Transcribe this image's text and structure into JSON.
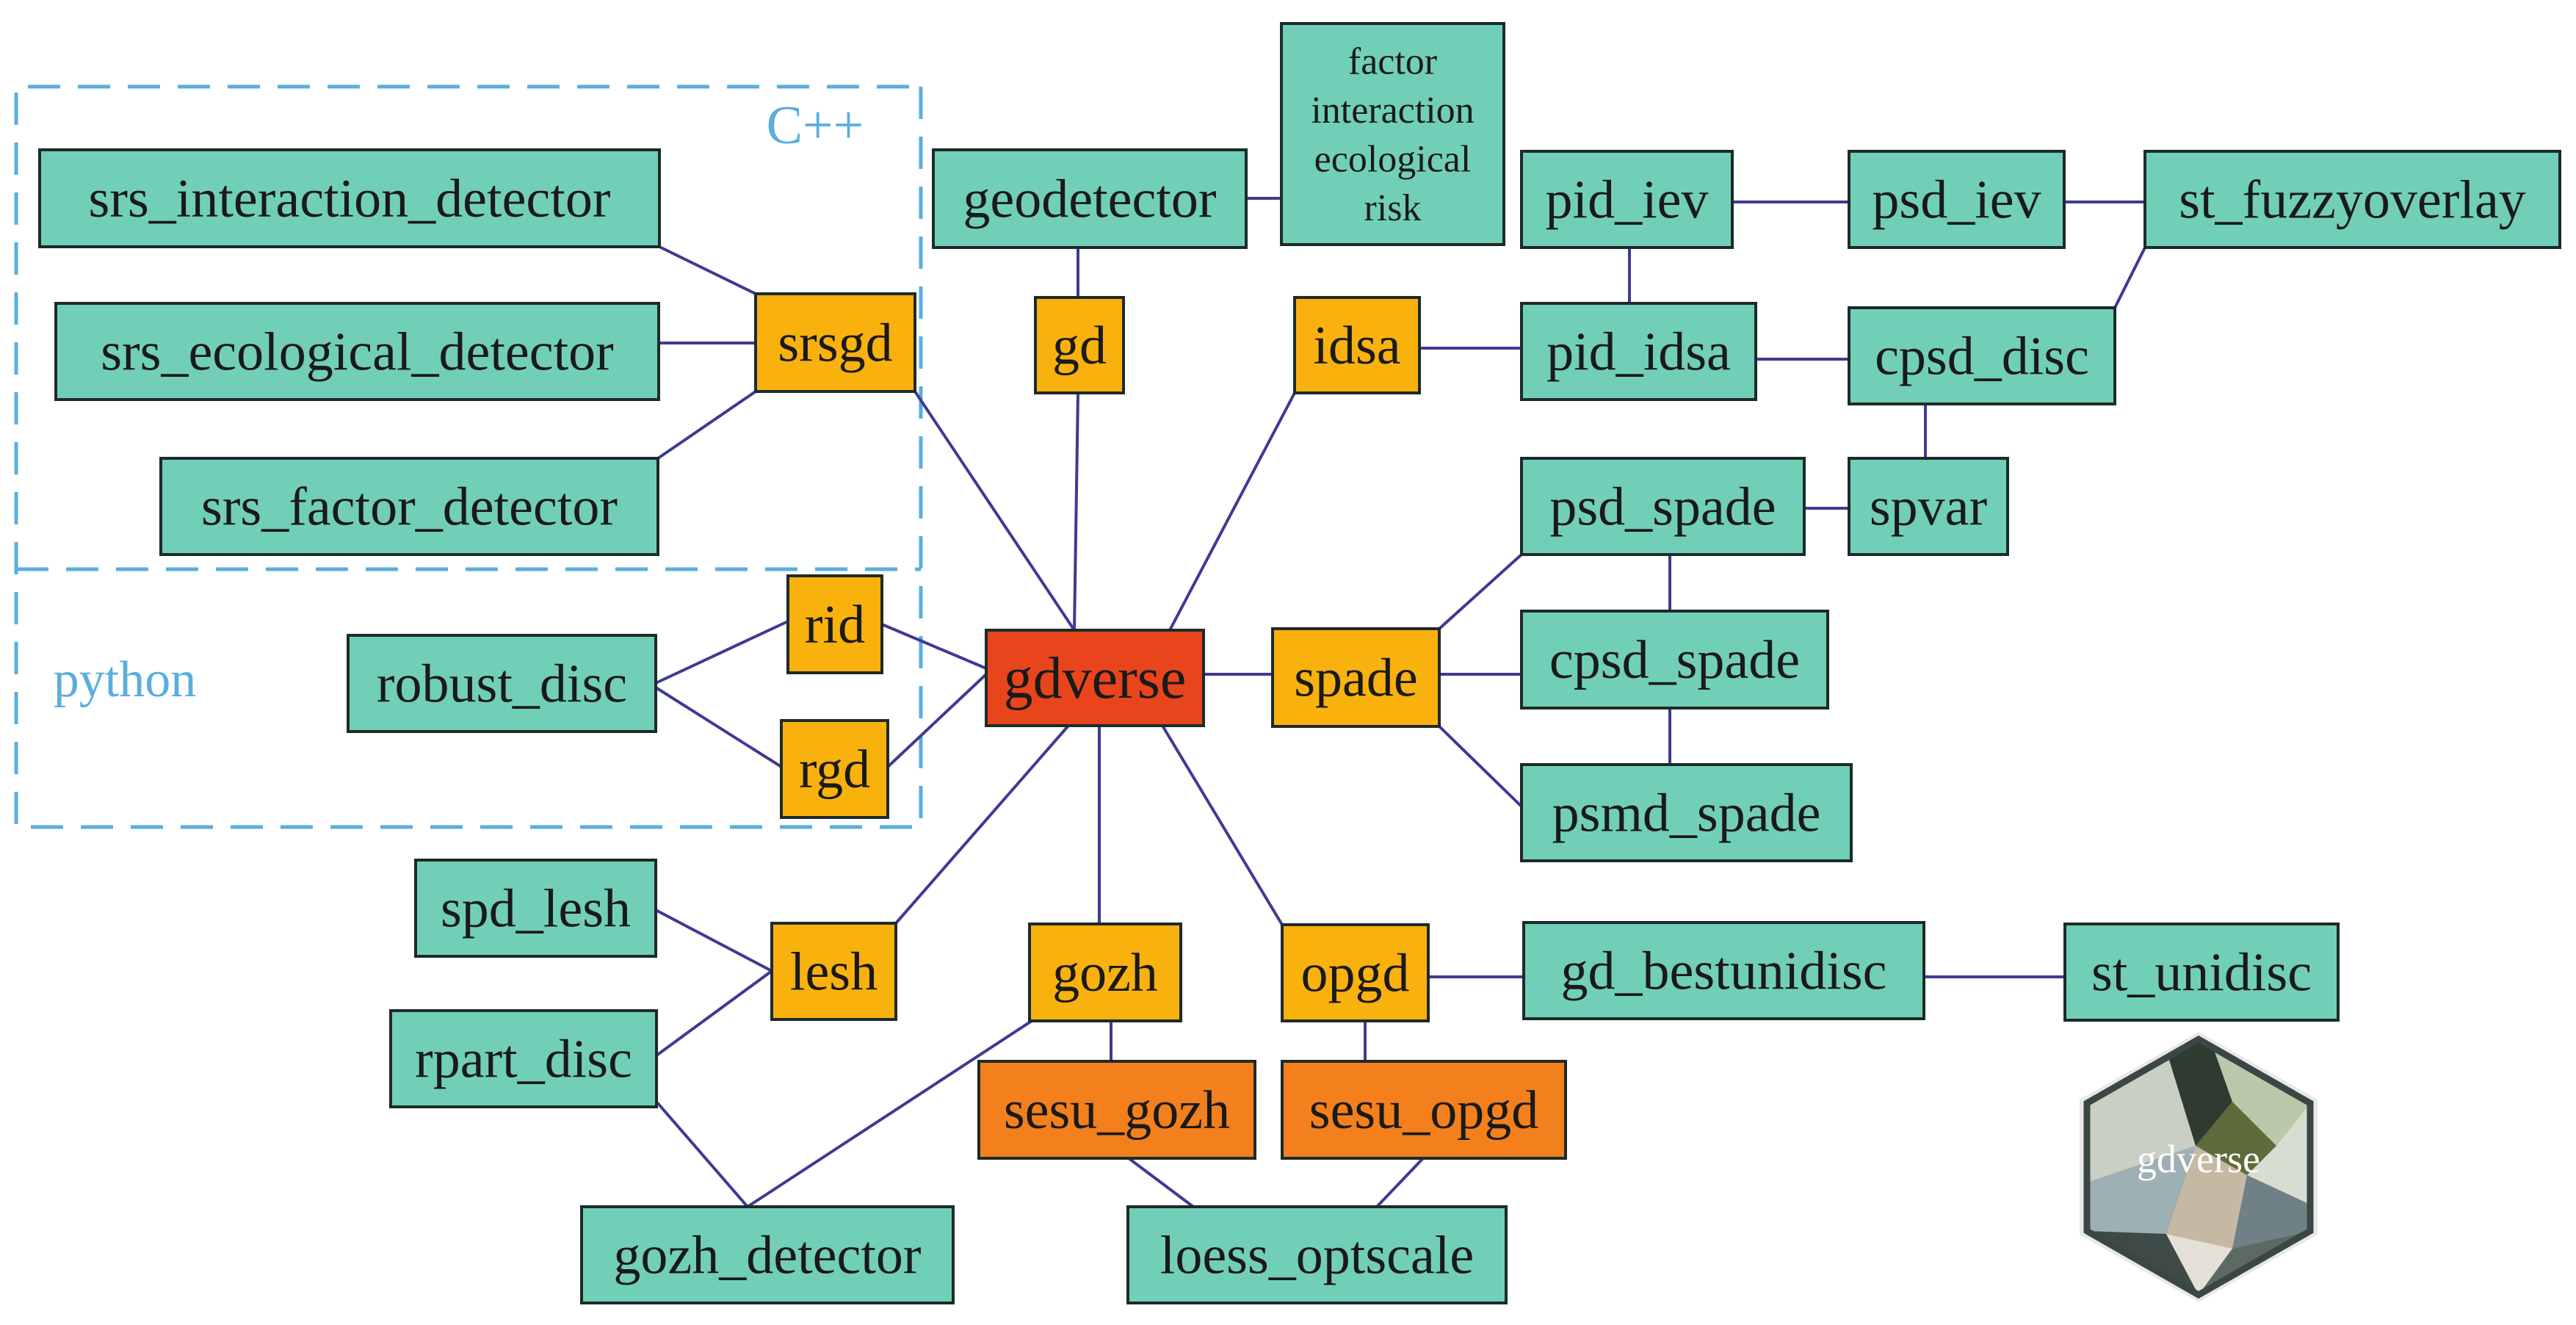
{
  "colors": {
    "green": "#72cfb7",
    "yellow": "#f9b10e",
    "orange": "#f3801c",
    "red": "#e9451c",
    "edge": "#3e3a93",
    "border": "#1c2b2a",
    "region": "#5aaede",
    "text": "#1a1a1a"
  },
  "regions": [
    {
      "id": "cpp",
      "label": "C++"
    },
    {
      "id": "python",
      "label": "python"
    }
  ],
  "nodes": [
    {
      "id": "gdverse",
      "label": "gdverse",
      "color": "red"
    },
    {
      "id": "srsgd",
      "label": "srsgd",
      "color": "yellow"
    },
    {
      "id": "gd",
      "label": "gd",
      "color": "yellow"
    },
    {
      "id": "idsa",
      "label": "idsa",
      "color": "yellow"
    },
    {
      "id": "rid",
      "label": "rid",
      "color": "yellow"
    },
    {
      "id": "rgd",
      "label": "rgd",
      "color": "yellow"
    },
    {
      "id": "spade",
      "label": "spade",
      "color": "yellow"
    },
    {
      "id": "lesh",
      "label": "lesh",
      "color": "yellow"
    },
    {
      "id": "gozh",
      "label": "gozh",
      "color": "yellow"
    },
    {
      "id": "opgd",
      "label": "opgd",
      "color": "yellow"
    },
    {
      "id": "sesu_gozh",
      "label": "sesu_gozh",
      "color": "orange"
    },
    {
      "id": "sesu_opgd",
      "label": "sesu_opgd",
      "color": "orange"
    },
    {
      "id": "srs_interaction_detector",
      "label": "srs_interaction_detector",
      "color": "green"
    },
    {
      "id": "srs_ecological_detector",
      "label": "srs_ecological_detector",
      "color": "green"
    },
    {
      "id": "srs_factor_detector",
      "label": "srs_factor_detector",
      "color": "green"
    },
    {
      "id": "geodetector",
      "label": "geodetector",
      "color": "green"
    },
    {
      "id": "factor_box",
      "label": "factor\ninteraction\necological\nrisk",
      "color": "green"
    },
    {
      "id": "pid_iev",
      "label": "pid_iev",
      "color": "green"
    },
    {
      "id": "psd_iev",
      "label": "psd_iev",
      "color": "green"
    },
    {
      "id": "st_fuzzyoverlay",
      "label": "st_fuzzyoverlay",
      "color": "green"
    },
    {
      "id": "pid_idsa",
      "label": "pid_idsa",
      "color": "green"
    },
    {
      "id": "cpsd_disc",
      "label": "cpsd_disc",
      "color": "green"
    },
    {
      "id": "psd_spade",
      "label": "psd_spade",
      "color": "green"
    },
    {
      "id": "spvar",
      "label": "spvar",
      "color": "green"
    },
    {
      "id": "cpsd_spade",
      "label": "cpsd_spade",
      "color": "green"
    },
    {
      "id": "psmd_spade",
      "label": "psmd_spade",
      "color": "green"
    },
    {
      "id": "robust_disc",
      "label": "robust_disc",
      "color": "green"
    },
    {
      "id": "spd_lesh",
      "label": "spd_lesh",
      "color": "green"
    },
    {
      "id": "rpart_disc",
      "label": "rpart_disc",
      "color": "green"
    },
    {
      "id": "gd_bestunidisc",
      "label": "gd_bestunidisc",
      "color": "green"
    },
    {
      "id": "st_unidisc",
      "label": "st_unidisc",
      "color": "green"
    },
    {
      "id": "gozh_detector",
      "label": "gozh_detector",
      "color": "green"
    },
    {
      "id": "loess_optscale",
      "label": "loess_optscale",
      "color": "green"
    }
  ],
  "edges": [
    [
      "srs_interaction_detector",
      "srsgd"
    ],
    [
      "srs_ecological_detector",
      "srsgd"
    ],
    [
      "srs_factor_detector",
      "srsgd"
    ],
    [
      "srsgd",
      "gdverse"
    ],
    [
      "geodetector",
      "gd"
    ],
    [
      "geodetector",
      "factor_box"
    ],
    [
      "gd",
      "gdverse"
    ],
    [
      "idsa",
      "gdverse"
    ],
    [
      "idsa",
      "pid_idsa"
    ],
    [
      "pid_iev",
      "psd_iev"
    ],
    [
      "psd_iev",
      "st_fuzzyoverlay"
    ],
    [
      "pid_iev",
      "pid_idsa"
    ],
    [
      "pid_idsa",
      "cpsd_disc"
    ],
    [
      "st_fuzzyoverlay",
      "cpsd_disc"
    ],
    [
      "cpsd_disc",
      "spvar"
    ],
    [
      "psd_spade",
      "spvar"
    ],
    [
      "spade",
      "psd_spade"
    ],
    [
      "spade",
      "cpsd_spade"
    ],
    [
      "spade",
      "psmd_spade"
    ],
    [
      "psd_spade",
      "cpsd_spade"
    ],
    [
      "cpsd_spade",
      "psmd_spade"
    ],
    [
      "gdverse",
      "spade"
    ],
    [
      "robust_disc",
      "rid"
    ],
    [
      "robust_disc",
      "rgd"
    ],
    [
      "rid",
      "gdverse"
    ],
    [
      "rgd",
      "gdverse"
    ],
    [
      "lesh",
      "gdverse"
    ],
    [
      "gozh",
      "gdverse"
    ],
    [
      "opgd",
      "gdverse"
    ],
    [
      "spd_lesh",
      "lesh"
    ],
    [
      "rpart_disc",
      "lesh"
    ],
    [
      "rpart_disc",
      "gozh_detector"
    ],
    [
      "gozh",
      "gozh_detector"
    ],
    [
      "gozh",
      "sesu_gozh"
    ],
    [
      "opgd",
      "gd_bestunidisc"
    ],
    [
      "gd_bestunidisc",
      "st_unidisc"
    ],
    [
      "opgd",
      "sesu_opgd"
    ],
    [
      "sesu_gozh",
      "loess_optscale"
    ],
    [
      "sesu_opgd",
      "loess_optscale"
    ]
  ],
  "logo": {
    "text": "gdverse"
  }
}
